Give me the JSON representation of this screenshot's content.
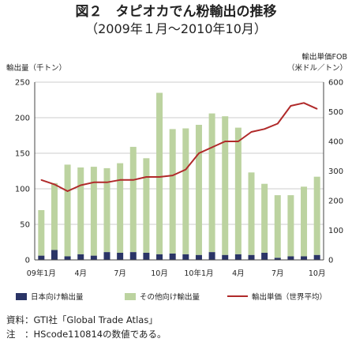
{
  "title": {
    "line1": "図２　タピオカでん粉輸出の推移",
    "line2": "（2009年１月～2010年10月）"
  },
  "y_left_label": "輸出量（千トン）",
  "y_right_label_1": "輸出単価FOB",
  "y_right_label_2": "（米ドル／トン）",
  "colors": {
    "japan": "#2a3466",
    "other": "#bcd3a0",
    "price": "#b02a2a"
  },
  "chart_data": {
    "type": "bar",
    "categories": [
      "09年1月",
      "2",
      "3",
      "4",
      "5",
      "6",
      "7",
      "8",
      "9",
      "10",
      "11",
      "12",
      "10年1月",
      "2",
      "3",
      "4",
      "5",
      "6",
      "7",
      "8",
      "9",
      "10"
    ],
    "x_tick_labels": [
      {
        "index": 0,
        "label": "09年1月"
      },
      {
        "index": 3,
        "label": "4月"
      },
      {
        "index": 6,
        "label": "7月"
      },
      {
        "index": 9,
        "label": "10月"
      },
      {
        "index": 12,
        "label": "10年1月"
      },
      {
        "index": 15,
        "label": "4月"
      },
      {
        "index": 18,
        "label": "7月"
      },
      {
        "index": 21,
        "label": "10月"
      }
    ],
    "stacked": true,
    "series": [
      {
        "name": "日本向け輸出量",
        "axis": "left",
        "type": "bar",
        "values": [
          6,
          14,
          5,
          8,
          6,
          11,
          10,
          11,
          10,
          8,
          9,
          8,
          7,
          11,
          7,
          8,
          7,
          10,
          3,
          5,
          5,
          7
        ]
      },
      {
        "name": "その他向け輸出量",
        "axis": "left",
        "type": "bar",
        "values": [
          64,
          94,
          129,
          122,
          125,
          118,
          126,
          148,
          133,
          227,
          175,
          177,
          183,
          195,
          195,
          178,
          116,
          97,
          88,
          86,
          98,
          110
        ]
      },
      {
        "name": "輸出単価（世界平均）",
        "axis": "right",
        "type": "line",
        "values": [
          270,
          255,
          232,
          252,
          262,
          262,
          270,
          270,
          280,
          280,
          285,
          305,
          360,
          380,
          400,
          400,
          432,
          442,
          460,
          520,
          530,
          510
        ]
      }
    ],
    "y_left": {
      "min": 0,
      "max": 250,
      "ticks": [
        0,
        50,
        100,
        150,
        200,
        250
      ]
    },
    "y_right": {
      "min": 0,
      "max": 600,
      "ticks": [
        0,
        100,
        200,
        300,
        400,
        500,
        600
      ]
    },
    "grid": "horizontal",
    "legend_position": "bottom"
  },
  "notes": [
    {
      "label": "資料",
      "text": "：GTI社「Global Trade Atlas」"
    },
    {
      "label": "注",
      "text": "　：HScode110814の数値である。"
    }
  ]
}
